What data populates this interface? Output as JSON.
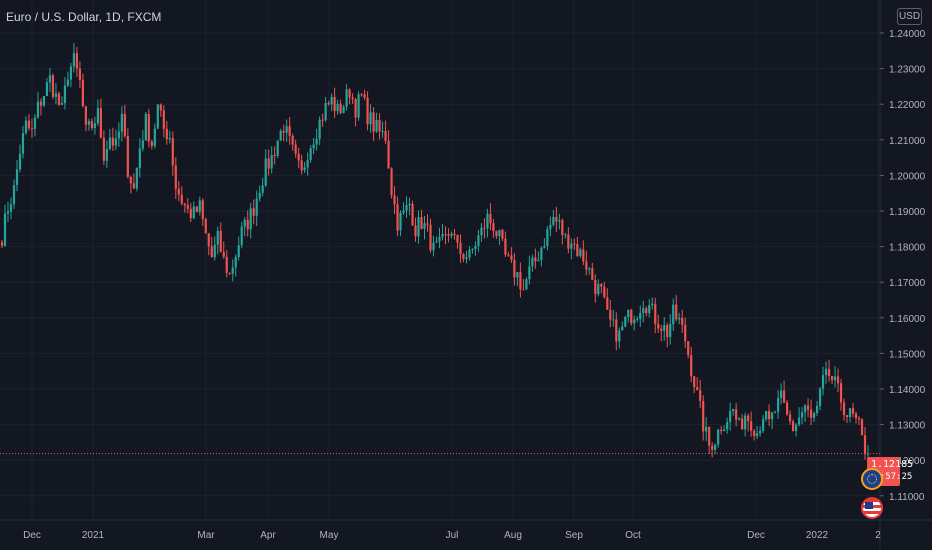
{
  "header": {
    "title": "Euro / U.S. Dollar, 1D, FXCM",
    "currency": "USD"
  },
  "last_price": {
    "value": "1.12185",
    "countdown": "15:57:25"
  },
  "flags": [
    "eu-flag-icon",
    "us-flag-icon"
  ],
  "colors": {
    "background": "#131722",
    "up": "#26a69a",
    "down": "#ef5350",
    "grid": "#1e222d",
    "text": "#b2b5be",
    "badge": "#f05350"
  },
  "chart_data": {
    "type": "candlestick",
    "title": "Euro / U.S. Dollar, 1D, FXCM",
    "x_ticks": [
      "Dec",
      "2021",
      "Mar",
      "Apr",
      "May",
      "Jul",
      "Aug",
      "Sep",
      "Oct",
      "Dec",
      "2022",
      "2"
    ],
    "y_ticks": [
      "1.24000",
      "1.23000",
      "1.22000",
      "1.21000",
      "1.20000",
      "1.19000",
      "1.18000",
      "1.17000",
      "1.16000",
      "1.15000",
      "1.14000",
      "1.13000",
      "1.12000",
      "1.11000"
    ],
    "ylim": [
      1.1065,
      1.2435
    ],
    "grid": true,
    "last_value": 1.12185,
    "series": [
      {
        "values": [
          1.183,
          1.191,
          1.196,
          1.207,
          1.214,
          1.212,
          1.219,
          1.223,
          1.227,
          1.222,
          1.218,
          1.229,
          1.232,
          1.226,
          1.212,
          1.214,
          1.217,
          1.206,
          1.211,
          1.208,
          1.216,
          1.202,
          1.196,
          1.208,
          1.215,
          1.209,
          1.219,
          1.213,
          1.211,
          1.197,
          1.193,
          1.19,
          1.189,
          1.191,
          1.183,
          1.177,
          1.182,
          1.176,
          1.172,
          1.178,
          1.184,
          1.187,
          1.191,
          1.197,
          1.202,
          1.205,
          1.21,
          1.214,
          1.209,
          1.204,
          1.2,
          1.207,
          1.211,
          1.215,
          1.219,
          1.221,
          1.218,
          1.22,
          1.224,
          1.219,
          1.222,
          1.217,
          1.214,
          1.212,
          1.211,
          1.196,
          1.187,
          1.189,
          1.192,
          1.185,
          1.187,
          1.184,
          1.179,
          1.18,
          1.182,
          1.185,
          1.179,
          1.178,
          1.177,
          1.181,
          1.184,
          1.188,
          1.186,
          1.182,
          1.177,
          1.174,
          1.172,
          1.168,
          1.173,
          1.176,
          1.18,
          1.184,
          1.188,
          1.186,
          1.182,
          1.182,
          1.179,
          1.177,
          1.173,
          1.169,
          1.167,
          1.16,
          1.157,
          1.155,
          1.159,
          1.161,
          1.162,
          1.165,
          1.163,
          1.16,
          1.158,
          1.156,
          1.161,
          1.159,
          1.154,
          1.146,
          1.138,
          1.13,
          1.124,
          1.126,
          1.13,
          1.132,
          1.134,
          1.129,
          1.133,
          1.131,
          1.128,
          1.133,
          1.13,
          1.134,
          1.137,
          1.132,
          1.129,
          1.132,
          1.135,
          1.131,
          1.134,
          1.142,
          1.144,
          1.141,
          1.137,
          1.133,
          1.132,
          1.129,
          1.12185
        ]
      }
    ]
  }
}
